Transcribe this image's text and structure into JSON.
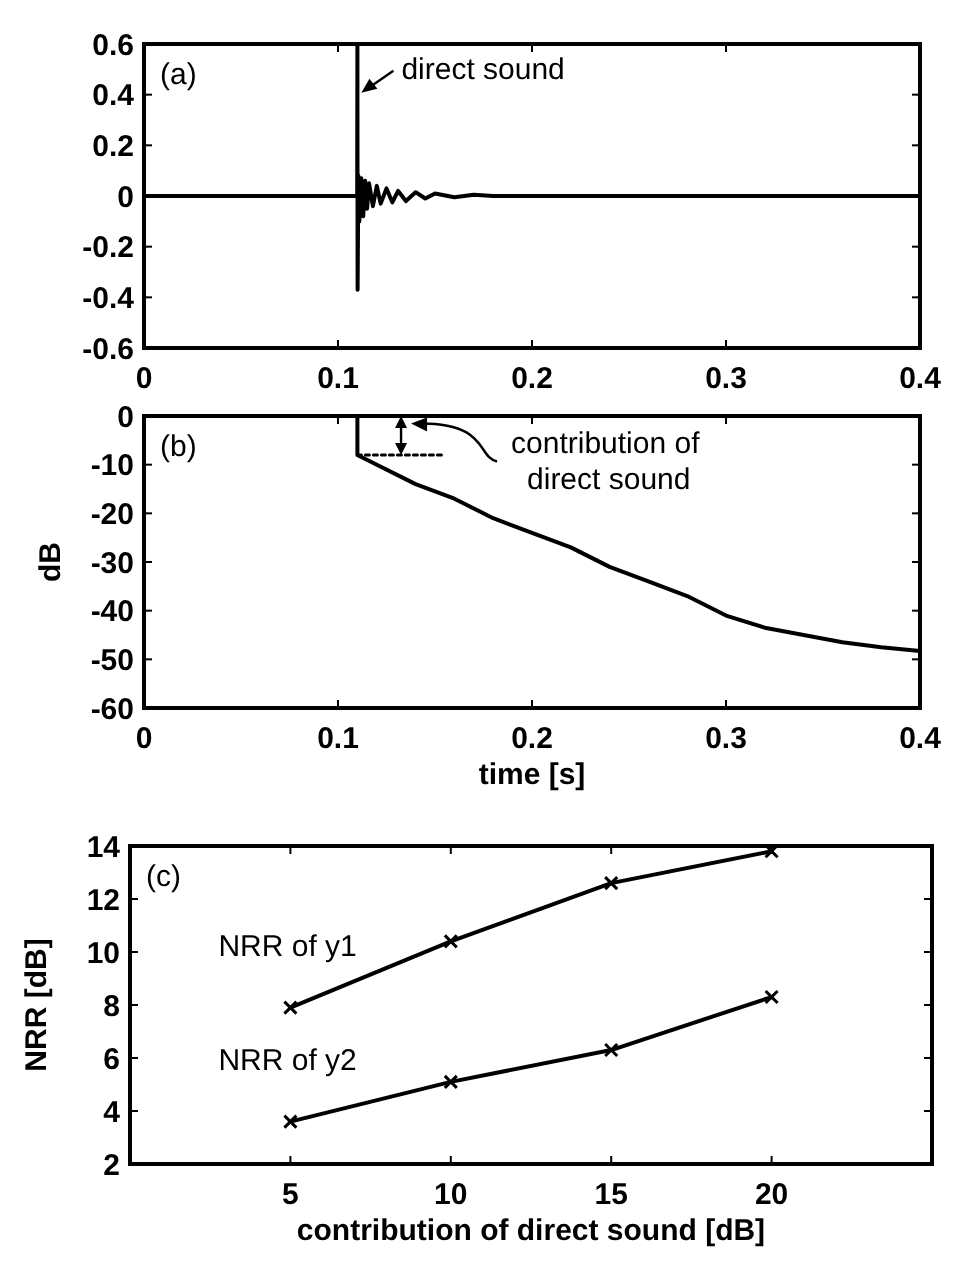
{
  "chart_data": [
    {
      "type": "line",
      "xlim": [
        0,
        0.4
      ],
      "ylim": [
        -0.6,
        0.6
      ],
      "xticks": [
        0,
        0.1,
        0.2,
        0.3,
        0.4
      ],
      "yticks": [
        -0.6,
        -0.4,
        -0.2,
        0,
        0.2,
        0.4,
        0.6
      ],
      "grid": false,
      "annotations": [
        "(a)",
        {
          "text": "direct sound",
          "x": 0.11,
          "y": 0.4
        }
      ],
      "series": [
        {
          "color": "#000000",
          "x": [
            0,
            0.108,
            0.1099,
            0.11,
            0.1101,
            0.1105,
            0.111,
            0.112,
            0.113,
            0.114,
            0.115,
            0.116,
            0.118,
            0.12,
            0.122,
            0.125,
            0.128,
            0.131,
            0.135,
            0.14,
            0.145,
            0.15,
            0.16,
            0.17,
            0.18,
            0.2,
            0.25,
            0.3,
            0.35,
            0.4
          ],
          "values": [
            0,
            0,
            0,
            0.6,
            -0.37,
            0.08,
            -0.1,
            0.07,
            -0.08,
            0.06,
            -0.05,
            0.05,
            -0.04,
            0.04,
            -0.03,
            0.03,
            -0.025,
            0.02,
            -0.02,
            0.015,
            -0.01,
            0.01,
            -0.005,
            0.005,
            0,
            0,
            0,
            0,
            0,
            0
          ]
        }
      ]
    },
    {
      "type": "line",
      "xlabel": "time [s]",
      "ylabel": "dB",
      "xlim": [
        0,
        0.4
      ],
      "ylim": [
        -60,
        0
      ],
      "xticks": [
        0,
        0.1,
        0.2,
        0.3,
        0.4
      ],
      "yticks": [
        -60,
        -50,
        -40,
        -30,
        -20,
        -10,
        0
      ],
      "grid": false,
      "annotations": [
        "(b)",
        "contribution of direct sound"
      ],
      "series": [
        {
          "color": "#000000",
          "line_style": "solid",
          "x": [
            0.11,
            0.11,
            0.12,
            0.14,
            0.16,
            0.18,
            0.2,
            0.22,
            0.24,
            0.26,
            0.28,
            0.3,
            0.32,
            0.34,
            0.36,
            0.38,
            0.4
          ],
          "values": [
            0,
            -8,
            -10,
            -14,
            -17,
            -21,
            -24,
            -27,
            -31,
            -34,
            -37,
            -41,
            -43.5,
            -45,
            -46.5,
            -47.5,
            -48.3
          ]
        },
        {
          "color": "#000000",
          "line_style": "dotted",
          "x": [
            0.11,
            0.155
          ],
          "values": [
            -8,
            -8
          ]
        }
      ]
    },
    {
      "type": "line",
      "xlabel": "contribution of direct sound [dB]",
      "ylabel": "NRR [dB]",
      "xlim": [
        0,
        25
      ],
      "ylim": [
        2,
        14
      ],
      "xticks": [
        5,
        10,
        15,
        20
      ],
      "yticks": [
        2,
        4,
        6,
        8,
        10,
        12,
        14
      ],
      "grid": false,
      "marker": "cross",
      "annotations": [
        "(c)"
      ],
      "series": [
        {
          "name": "NRR of y1",
          "color": "#000000",
          "x": [
            5,
            10,
            15,
            20
          ],
          "values": [
            7.9,
            10.4,
            12.6,
            13.8
          ]
        },
        {
          "name": "NRR of y2",
          "color": "#000000",
          "x": [
            5,
            10,
            15,
            20
          ],
          "values": [
            3.6,
            5.1,
            6.3,
            8.3
          ]
        }
      ]
    }
  ]
}
